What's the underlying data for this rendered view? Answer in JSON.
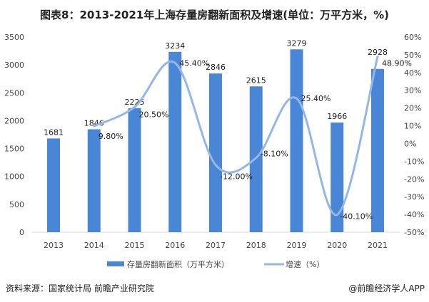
{
  "title": "图表8：2013-2021年上海存量房翻新面积及增速(单位：万平方米，%)",
  "source": "资料来源：国家统计局 前瞻产业研究院",
  "credit": "@前瞻经济学人APP",
  "colors": {
    "bar": "#4a86d6",
    "line": "#93b7e6"
  },
  "chart_data": {
    "type": "bar+line",
    "categories": [
      "2013",
      "2014",
      "2015",
      "2016",
      "2017",
      "2018",
      "2019",
      "2020",
      "2021"
    ],
    "series": [
      {
        "name": "存量房翻新面积（万平方米）",
        "type": "bar",
        "axis": "left",
        "values": [
          1681,
          1846,
          2225,
          3234,
          2846,
          2615,
          3279,
          1966,
          2928
        ],
        "labels": [
          "1681",
          "1846",
          "2225",
          "3234",
          "2846",
          "2615",
          "3279",
          "1966",
          "2928"
        ]
      },
      {
        "name": "增速（%）",
        "type": "line",
        "axis": "right",
        "smooth": true,
        "values": [
          null,
          9.8,
          20.5,
          45.4,
          -12.0,
          -8.1,
          25.4,
          -40.1,
          48.9
        ],
        "labels": [
          "",
          "9.80%",
          "20.50%",
          "45.40%",
          "-12.00%",
          "-8.10%",
          "25.40%",
          "-40.10%",
          "48.90%"
        ]
      }
    ],
    "left_axis": {
      "range": [
        0,
        3500
      ],
      "ticks": [
        "0",
        "500",
        "1000",
        "1500",
        "2000",
        "2500",
        "3000",
        "3500"
      ]
    },
    "right_axis": {
      "range": [
        -50,
        60
      ],
      "ticks": [
        "-50%",
        "-40%",
        "-30%",
        "-20%",
        "-10%",
        "0%",
        "10%",
        "20%",
        "30%",
        "40%",
        "50%",
        "60%"
      ]
    },
    "grid": false,
    "legend": "bottom"
  }
}
